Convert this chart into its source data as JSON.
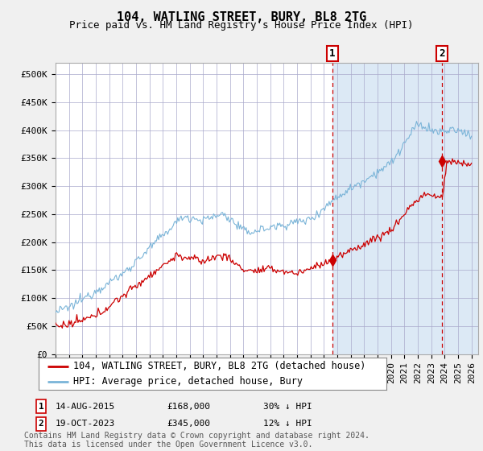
{
  "title": "104, WATLING STREET, BURY, BL8 2TG",
  "subtitle": "Price paid vs. HM Land Registry's House Price Index (HPI)",
  "ylabel_ticks": [
    "£0",
    "£50K",
    "£100K",
    "£150K",
    "£200K",
    "£250K",
    "£300K",
    "£350K",
    "£400K",
    "£450K",
    "£500K"
  ],
  "ytick_values": [
    0,
    50000,
    100000,
    150000,
    200000,
    250000,
    300000,
    350000,
    400000,
    450000,
    500000
  ],
  "ylim": [
    0,
    520000
  ],
  "xlim_start": 1995.0,
  "xlim_end": 2026.5,
  "hpi_color": "#7ab4d8",
  "price_color": "#cc0000",
  "vline_color": "#cc0000",
  "background_color": "#f0f0f0",
  "plot_background": "#dce9f5",
  "plot_left_background": "#ffffff",
  "grid_color": "#aaaacc",
  "legend_label_red": "104, WATLING STREET, BURY, BL8 2TG (detached house)",
  "legend_label_blue": "HPI: Average price, detached house, Bury",
  "annotation1_year": 2015.62,
  "annotation1_value": 168000,
  "annotation2_year": 2023.79,
  "annotation2_value": 345000,
  "annotation1_date": "14-AUG-2015",
  "annotation1_price": "£168,000",
  "annotation1_hpi": "30% ↓ HPI",
  "annotation2_date": "19-OCT-2023",
  "annotation2_price": "£345,000",
  "annotation2_hpi": "12% ↓ HPI",
  "footer": "Contains HM Land Registry data © Crown copyright and database right 2024.\nThis data is licensed under the Open Government Licence v3.0.",
  "title_fontsize": 11,
  "subtitle_fontsize": 9,
  "tick_fontsize": 8,
  "legend_fontsize": 8.5,
  "footer_fontsize": 7
}
